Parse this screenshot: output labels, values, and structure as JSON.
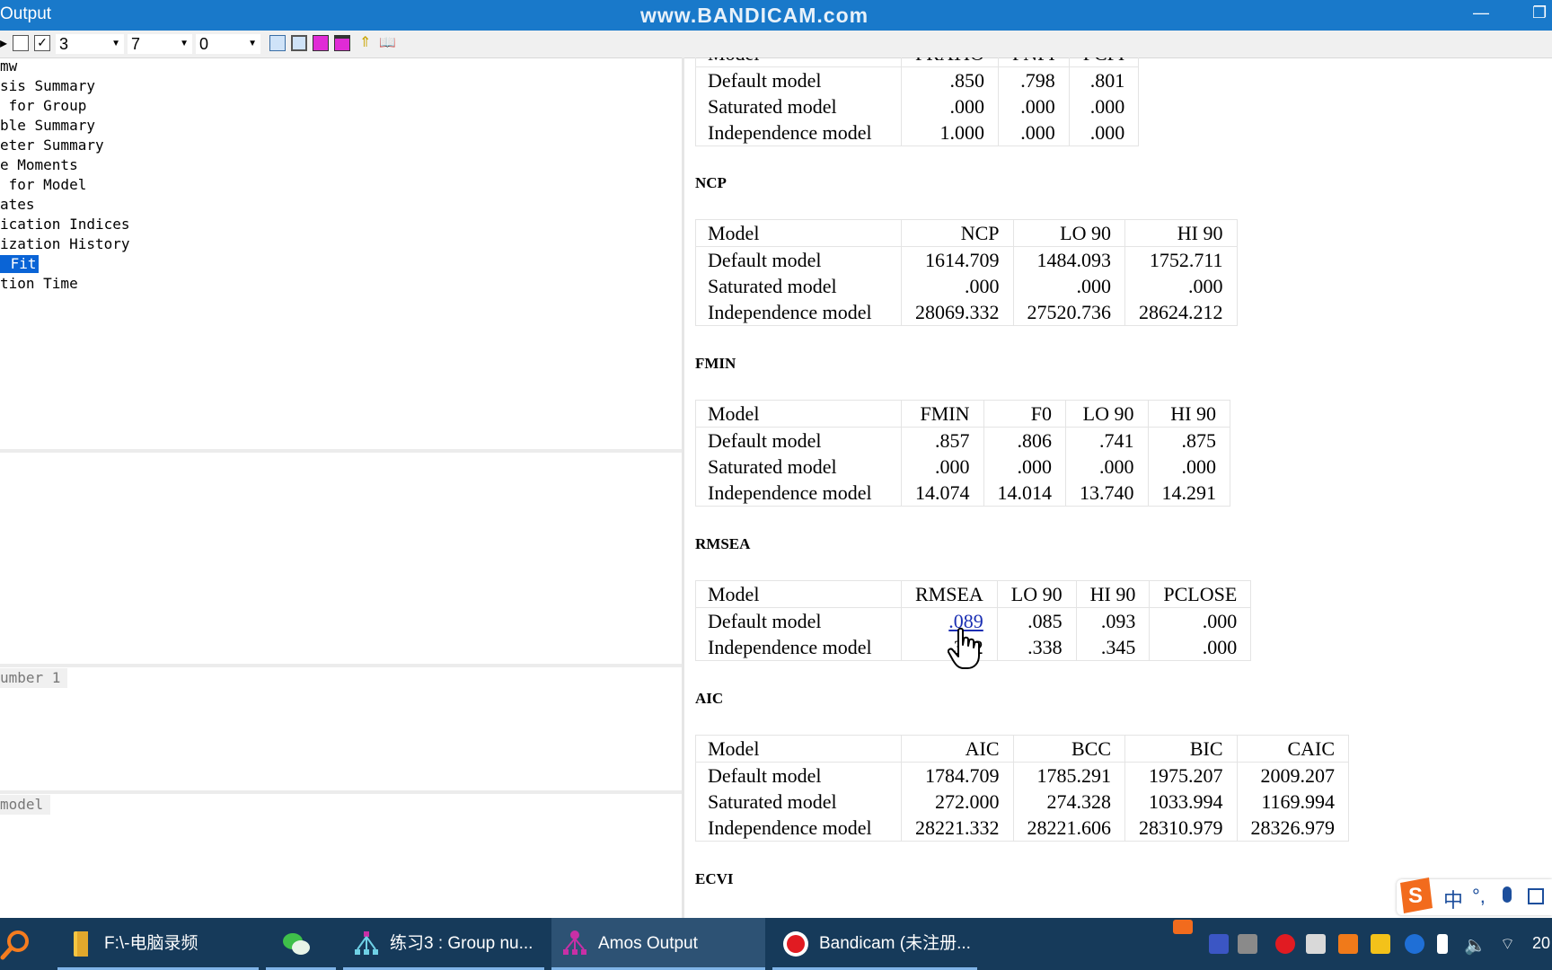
{
  "window": {
    "title": "Output",
    "watermark": "www.BANDICAM.com",
    "minimize": "—",
    "restore": "❐"
  },
  "toolbar": {
    "combo1": "3",
    "combo2": "7",
    "combo3": "0"
  },
  "tree": {
    "items": [
      "mw",
      "sis Summary",
      " for Group",
      "ble Summary",
      "eter Summary",
      "e Moments",
      " for Model",
      "ates",
      "ication Indices",
      "ization History",
      " Fit",
      "tion Time"
    ],
    "selected_index": 10
  },
  "panes": {
    "group_label": "umber 1",
    "model_label": " model"
  },
  "output": {
    "parsimony_table": {
      "header": [
        "Model",
        "PRATIO",
        "PNFI",
        "PCFI"
      ],
      "rows": [
        [
          "Default model",
          ".850",
          ".798",
          ".801"
        ],
        [
          "Saturated model",
          ".000",
          ".000",
          ".000"
        ],
        [
          "Independence model",
          "1.000",
          ".000",
          ".000"
        ]
      ]
    },
    "ncp": {
      "title": "NCP",
      "header": [
        "Model",
        "NCP",
        "LO 90",
        "HI 90"
      ],
      "rows": [
        [
          "Default model",
          "1614.709",
          "1484.093",
          "1752.711"
        ],
        [
          "Saturated model",
          ".000",
          ".000",
          ".000"
        ],
        [
          "Independence model",
          "28069.332",
          "27520.736",
          "28624.212"
        ]
      ]
    },
    "fmin": {
      "title": "FMIN",
      "header": [
        "Model",
        "FMIN",
        "F0",
        "LO 90",
        "HI 90"
      ],
      "rows": [
        [
          "Default model",
          ".857",
          ".806",
          ".741",
          ".875"
        ],
        [
          "Saturated model",
          ".000",
          ".000",
          ".000",
          ".000"
        ],
        [
          "Independence model",
          "14.074",
          "14.014",
          "13.740",
          "14.291"
        ]
      ]
    },
    "rmsea": {
      "title": "RMSEA",
      "header": [
        "Model",
        "RMSEA",
        "LO 90",
        "HI 90",
        "PCLOSE"
      ],
      "rows": [
        [
          "Default model",
          ".089",
          ".085",
          ".093",
          ".000"
        ],
        [
          "Independence model",
          ".342",
          ".338",
          ".345",
          ".000"
        ]
      ]
    },
    "aic": {
      "title": "AIC",
      "header": [
        "Model",
        "AIC",
        "BCC",
        "BIC",
        "CAIC"
      ],
      "rows": [
        [
          "Default model",
          "1784.709",
          "1785.291",
          "1975.207",
          "2009.207"
        ],
        [
          "Saturated model",
          "272.000",
          "274.328",
          "1033.994",
          "1169.994"
        ],
        [
          "Independence model",
          "28221.332",
          "28221.606",
          "28310.979",
          "28326.979"
        ]
      ]
    },
    "ecvi": {
      "title": "ECVI"
    }
  },
  "taskbar": {
    "tasks": [
      {
        "label": "F:\\-电脑录频",
        "icon": "folder-icon"
      },
      {
        "label": "",
        "icon": "wechat-icon"
      },
      {
        "label": "练习3 : Group nu...",
        "icon": "amos-graphics-icon"
      },
      {
        "label": "Amos Output",
        "icon": "amos-output-icon"
      },
      {
        "label": "Bandicam (未注册...",
        "icon": "bandicam-icon"
      }
    ],
    "ime_lang": "中",
    "clock": "20"
  },
  "colors": {
    "titlebar": "#1979ca",
    "selection": "#0a64d6",
    "taskbar": "#163a5a",
    "link": "#1a2fb3"
  }
}
